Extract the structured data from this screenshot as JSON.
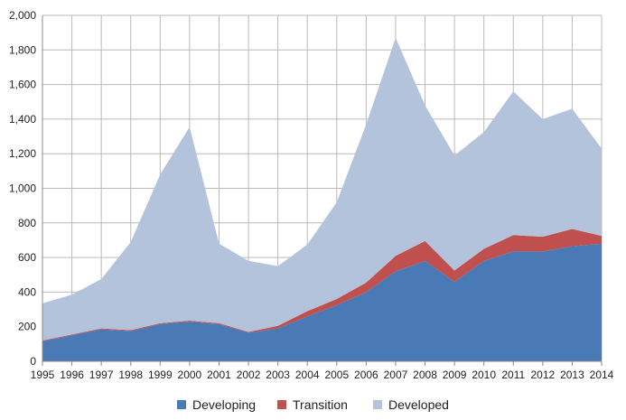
{
  "chart_data": {
    "type": "area",
    "stacked": true,
    "title": "",
    "xlabel": "",
    "ylabel": "",
    "x": [
      "1995",
      "1996",
      "1997",
      "1998",
      "1999",
      "2000",
      "2001",
      "2002",
      "2003",
      "2004",
      "2005",
      "2006",
      "2007",
      "2008",
      "2009",
      "2010",
      "2011",
      "2012",
      "2013",
      "2014"
    ],
    "ylim": [
      0,
      2000
    ],
    "yticks": [
      "0",
      "200",
      "400",
      "600",
      "800",
      "1,000",
      "1,200",
      "1,400",
      "1,600",
      "1,800",
      "2,000"
    ],
    "grid": true,
    "legend_position": "bottom",
    "series": [
      {
        "name": "Developing",
        "color": "#4a7ab5",
        "values": [
          115,
          150,
          185,
          175,
          215,
          230,
          215,
          165,
          190,
          260,
          325,
          400,
          520,
          580,
          460,
          580,
          635,
          635,
          665,
          680
        ]
      },
      {
        "name": "Transition",
        "color": "#c0504d",
        "values": [
          5,
          5,
          5,
          5,
          5,
          5,
          5,
          5,
          15,
          30,
          35,
          55,
          90,
          115,
          65,
          70,
          95,
          85,
          100,
          45
        ]
      },
      {
        "name": "Developed",
        "color": "#b4c3dc",
        "values": [
          215,
          230,
          285,
          510,
          860,
          1120,
          460,
          410,
          345,
          385,
          560,
          915,
          1260,
          785,
          665,
          675,
          830,
          680,
          695,
          505
        ]
      }
    ]
  }
}
